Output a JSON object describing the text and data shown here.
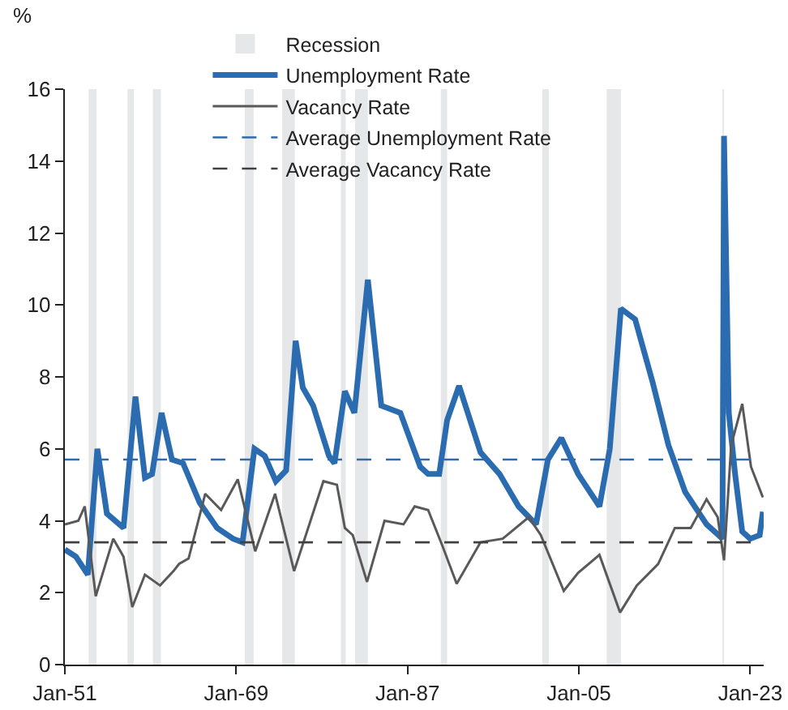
{
  "chart_data": {
    "type": "line",
    "ylabel": "%",
    "xlim": [
      "1951-01",
      "2024-06"
    ],
    "xticks": [
      {
        "value": "1951-01",
        "label": "Jan-51"
      },
      {
        "value": "1969-01",
        "label": "Jan-69"
      },
      {
        "value": "1987-01",
        "label": "Jan-87"
      },
      {
        "value": "2005-01",
        "label": "Jan-05"
      },
      {
        "value": "2023-01",
        "label": "Jan-23"
      }
    ],
    "ylim": [
      0,
      16
    ],
    "yticks": [
      0,
      2,
      4,
      6,
      8,
      10,
      12,
      14,
      16
    ],
    "grid": false,
    "legend": "top",
    "marker": "none",
    "series": [
      {
        "name": "Unemployment Rate",
        "color": "#2b6cb0",
        "x": [
          "1951-01",
          "1952-03",
          "1953-06",
          "1954-06",
          "1955-06",
          "1957-03",
          "1958-06",
          "1959-06",
          "1960-03",
          "1961-03",
          "1962-04",
          "1963-06",
          "1965-03",
          "1967-01",
          "1968-09",
          "1969-09",
          "1970-12",
          "1972-01",
          "1973-03",
          "1974-04",
          "1975-04",
          "1976-01",
          "1977-02",
          "1978-10",
          "1979-05",
          "1980-06",
          "1981-06",
          "1982-11",
          "1984-04",
          "1986-04",
          "1988-05",
          "1989-03",
          "1990-05",
          "1991-03",
          "1992-06",
          "1994-09",
          "1996-09",
          "1998-09",
          "2000-07",
          "2001-10",
          "2003-03",
          "2004-12",
          "2007-03",
          "2008-04",
          "2009-06",
          "2010-12",
          "2012-10",
          "2014-06",
          "2016-03",
          "2018-06",
          "2020-02",
          "2020-04",
          "2020-10",
          "2021-06",
          "2022-03",
          "2023-01",
          "2024-01",
          "2024-05"
        ],
        "values": [
          3.2,
          3.0,
          2.5,
          6.0,
          4.2,
          3.8,
          7.45,
          5.2,
          5.3,
          7.0,
          5.7,
          5.6,
          4.5,
          3.8,
          3.5,
          3.4,
          6.0,
          5.8,
          5.1,
          5.4,
          9.0,
          7.7,
          7.2,
          5.8,
          5.6,
          7.6,
          7.0,
          10.7,
          7.2,
          7.0,
          5.5,
          5.3,
          5.3,
          6.8,
          7.75,
          5.9,
          5.3,
          4.4,
          3.9,
          5.7,
          6.3,
          5.3,
          4.4,
          6.0,
          9.9,
          9.6,
          7.85,
          6.1,
          4.8,
          3.9,
          3.5,
          14.7,
          7.0,
          5.3,
          3.7,
          3.5,
          3.6,
          4.25
        ]
      },
      {
        "name": "Vacancy Rate",
        "color": "#595959",
        "x": [
          "1951-01",
          "1952-06",
          "1953-02",
          "1954-04",
          "1956-02",
          "1957-03",
          "1958-02",
          "1959-06",
          "1961-01",
          "1962-06",
          "1963-01",
          "1964-01",
          "1965-10",
          "1967-06",
          "1969-03",
          "1971-01",
          "1973-02",
          "1975-02",
          "1978-03",
          "1979-08",
          "1980-06",
          "1981-04",
          "1982-10",
          "1984-08",
          "1986-08",
          "1987-10",
          "1989-03",
          "1990-09",
          "1992-03",
          "1994-09",
          "1997-01",
          "1999-10",
          "2001-01",
          "2003-06",
          "2004-12",
          "2007-03",
          "2009-05",
          "2011-02",
          "2013-05",
          "2015-02",
          "2016-10",
          "2018-06",
          "2019-08",
          "2020-04",
          "2021-01",
          "2022-03",
          "2023-02",
          "2024-05"
        ],
        "values": [
          3.9,
          4.0,
          4.4,
          1.9,
          3.5,
          3.0,
          1.6,
          2.5,
          2.2,
          2.6,
          2.8,
          2.95,
          4.75,
          4.3,
          5.15,
          3.15,
          4.75,
          2.6,
          5.1,
          5.0,
          3.8,
          3.6,
          2.3,
          4.0,
          3.9,
          4.4,
          4.3,
          3.3,
          2.25,
          3.4,
          3.5,
          4.1,
          3.6,
          2.05,
          2.55,
          3.05,
          1.45,
          2.2,
          2.8,
          3.8,
          3.8,
          4.6,
          4.1,
          2.9,
          6.1,
          7.25,
          5.5,
          4.65
        ]
      }
    ],
    "ref_lines": [
      {
        "axis": "y",
        "value": 5.7,
        "label": "Average Unemployment Rate",
        "color": "#2b6cb0",
        "line_style": "dashed"
      },
      {
        "axis": "y",
        "value": 3.4,
        "label": "Average Vacancy Rate",
        "color": "#404040",
        "line_style": "dashed"
      }
    ],
    "bands": [
      {
        "axis": "x",
        "from": "1953-07",
        "to": "1954-05",
        "label": "Recession",
        "color": "#e6e7e9"
      },
      {
        "axis": "x",
        "from": "1957-08",
        "to": "1958-04",
        "color": "#e6e7e9"
      },
      {
        "axis": "x",
        "from": "1960-04",
        "to": "1961-02",
        "color": "#e6e7e9"
      },
      {
        "axis": "x",
        "from": "1969-12",
        "to": "1970-11",
        "color": "#e6e7e9"
      },
      {
        "axis": "x",
        "from": "1973-11",
        "to": "1975-03",
        "color": "#e6e7e9"
      },
      {
        "axis": "x",
        "from": "1980-01",
        "to": "1980-07",
        "color": "#e6e7e9"
      },
      {
        "axis": "x",
        "from": "1981-07",
        "to": "1982-11",
        "color": "#e6e7e9"
      },
      {
        "axis": "x",
        "from": "1990-07",
        "to": "1991-03",
        "color": "#e6e7e9"
      },
      {
        "axis": "x",
        "from": "2001-03",
        "to": "2001-11",
        "color": "#e6e7e9"
      },
      {
        "axis": "x",
        "from": "2007-12",
        "to": "2009-06",
        "color": "#e6e7e9"
      },
      {
        "axis": "x",
        "from": "2020-02",
        "to": "2020-04",
        "color": "#e6e7e9"
      }
    ]
  }
}
